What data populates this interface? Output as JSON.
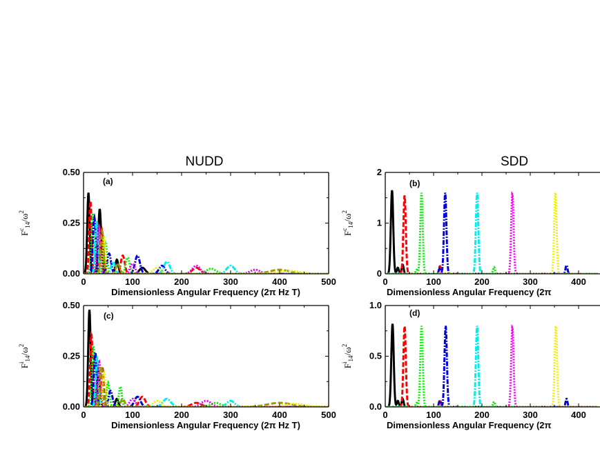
{
  "titles": {
    "left": "NUDD",
    "right": "SDD"
  },
  "colors": {
    "black": "#000000",
    "red": "#ff0000",
    "green": "#00ee00",
    "blue": "#0000dd",
    "cyan": "#00eeee",
    "magenta": "#ee00ee",
    "yellow": "#eeee00",
    "olive": "#9a9a00"
  },
  "chart_data": [
    {
      "id": "a",
      "type": "line",
      "panel_label": "(a)",
      "xlabel": "Dimensionless Angular Frequency (2π Hz T)",
      "ylabel": {
        "main": "F",
        "sup": "c",
        "sub": "14",
        "tail": "/ω",
        "tail_sup": "2"
      },
      "xlim": [
        0,
        500
      ],
      "ylim": [
        0,
        0.5
      ],
      "xticks": [
        0,
        100,
        200,
        300,
        400,
        500
      ],
      "yticks": [
        0.0,
        0.25,
        0.5
      ],
      "ytick_labels": [
        "0.00",
        "0.25",
        "0.50"
      ],
      "series": [
        {
          "color": "black",
          "dash": "solid",
          "peaks": [
            [
              10,
              0.4,
              2.5
            ],
            [
              33,
              0.32,
              3
            ],
            [
              68,
              0.07,
              3
            ],
            [
              120,
              0.03,
              6
            ]
          ]
        },
        {
          "color": "red",
          "dash": "dash",
          "peaks": [
            [
              14,
              0.36,
              2.5
            ],
            [
              37,
              0.22,
              3
            ],
            [
              80,
              0.09,
              4
            ],
            [
              230,
              0.03,
              8
            ]
          ]
        },
        {
          "color": "green",
          "dash": "dot",
          "peaks": [
            [
              19,
              0.3,
              3
            ],
            [
              45,
              0.15,
              3
            ],
            [
              90,
              0.08,
              4
            ],
            [
              260,
              0.025,
              10
            ]
          ]
        },
        {
          "color": "blue",
          "dash": "dashdot",
          "peaks": [
            [
              22,
              0.28,
              3
            ],
            [
              52,
              0.1,
              4
            ],
            [
              110,
              0.09,
              5
            ],
            [
              160,
              0.04,
              6
            ]
          ]
        },
        {
          "color": "cyan",
          "dash": "dashdot",
          "peaks": [
            [
              27,
              0.26,
              3
            ],
            [
              60,
              0.06,
              4
            ],
            [
              170,
              0.06,
              6
            ],
            [
              300,
              0.04,
              8
            ]
          ]
        },
        {
          "color": "magenta",
          "dash": "dot",
          "peaks": [
            [
              31,
              0.24,
              3
            ],
            [
              100,
              0.05,
              5
            ],
            [
              230,
              0.04,
              8
            ],
            [
              350,
              0.02,
              10
            ]
          ]
        },
        {
          "color": "olive",
          "dash": "dash",
          "peaks": [
            [
              38,
              0.21,
              3
            ],
            [
              70,
              0.05,
              4
            ],
            [
              400,
              0.02,
              20
            ]
          ]
        },
        {
          "color": "yellow",
          "dash": "dot",
          "peaks": [
            [
              42,
              0.18,
              3
            ],
            [
              150,
              0.03,
              8
            ],
            [
              420,
              0.015,
              20
            ]
          ]
        }
      ]
    },
    {
      "id": "b",
      "type": "line",
      "panel_label": "(b)",
      "xlabel": "Dimensionless Angular Frequency (2π",
      "ylabel": {
        "main": "F",
        "sup": "c",
        "sub": "14",
        "tail": "/ω",
        "tail_sup": "2"
      },
      "xlim": [
        0,
        440
      ],
      "ylim": [
        0,
        2
      ],
      "xticks": [
        0,
        100,
        200,
        300,
        400
      ],
      "yticks": [
        0,
        1,
        2
      ],
      "ytick_labels": [
        "0",
        "1",
        "2"
      ],
      "series": [
        {
          "color": "black",
          "dash": "solid",
          "peaks": [
            [
              14,
              1.65,
              2.5
            ],
            [
              26,
              0.12,
              2
            ],
            [
              36,
              0.18,
              2
            ]
          ]
        },
        {
          "color": "red",
          "dash": "dash",
          "peaks": [
            [
              40,
              1.55,
              2.5
            ],
            [
              113,
              0.15,
              2
            ]
          ]
        },
        {
          "color": "green",
          "dash": "dot",
          "peaks": [
            [
              75,
              1.6,
              2.5
            ],
            [
              65,
              0.08,
              2
            ],
            [
              225,
              0.13,
              2
            ]
          ]
        },
        {
          "color": "blue",
          "dash": "dashdot",
          "peaks": [
            [
              124,
              1.6,
              2.5
            ],
            [
              113,
              0.12,
              2
            ],
            [
              375,
              0.17,
              2
            ]
          ]
        },
        {
          "color": "cyan",
          "dash": "dashdot",
          "peaks": [
            [
              190,
              1.6,
              2.5
            ]
          ]
        },
        {
          "color": "magenta",
          "dash": "dot",
          "peaks": [
            [
              263,
              1.58,
              2.5
            ]
          ]
        },
        {
          "color": "yellow",
          "dash": "dot",
          "peaks": [
            [
              352,
              1.6,
              2.5
            ]
          ]
        }
      ]
    },
    {
      "id": "c",
      "type": "line",
      "panel_label": "(c)",
      "xlabel": "Dimensionless Angular Frequency (2π Hz T)",
      "ylabel": {
        "main": "F",
        "sup": "i",
        "sub": "14",
        "tail": "/ω",
        "tail_sup": "2"
      },
      "xlim": [
        0,
        500
      ],
      "ylim": [
        0,
        0.5
      ],
      "xticks": [
        0,
        100,
        200,
        300,
        400,
        500
      ],
      "yticks": [
        0.0,
        0.25,
        0.5
      ],
      "ytick_labels": [
        "0.00",
        "0.25",
        "0.50"
      ],
      "series": [
        {
          "color": "black",
          "dash": "solid",
          "peaks": [
            [
              12,
              0.48,
              2.5
            ],
            [
              30,
              0.18,
              3
            ],
            [
              68,
              0.04,
              3
            ]
          ]
        },
        {
          "color": "red",
          "dash": "dash",
          "peaks": [
            [
              16,
              0.36,
              2.5
            ],
            [
              38,
              0.2,
              3
            ],
            [
              120,
              0.05,
              6
            ],
            [
              230,
              0.02,
              10
            ]
          ]
        },
        {
          "color": "green",
          "dash": "dot",
          "peaks": [
            [
              20,
              0.3,
              3
            ],
            [
              50,
              0.12,
              3
            ],
            [
              75,
              0.1,
              3
            ],
            [
              270,
              0.02,
              10
            ]
          ]
        },
        {
          "color": "blue",
          "dash": "dashdot",
          "peaks": [
            [
              24,
              0.27,
              3
            ],
            [
              55,
              0.08,
              4
            ],
            [
              110,
              0.05,
              6
            ]
          ]
        },
        {
          "color": "cyan",
          "dash": "dashdot",
          "peaks": [
            [
              28,
              0.24,
              3
            ],
            [
              170,
              0.04,
              8
            ],
            [
              300,
              0.03,
              8
            ]
          ]
        },
        {
          "color": "magenta",
          "dash": "dot",
          "peaks": [
            [
              32,
              0.22,
              3
            ],
            [
              100,
              0.04,
              6
            ],
            [
              250,
              0.03,
              10
            ]
          ]
        },
        {
          "color": "olive",
          "dash": "dash",
          "peaks": [
            [
              36,
              0.2,
              3
            ],
            [
              80,
              0.04,
              4
            ],
            [
              400,
              0.02,
              25
            ]
          ]
        },
        {
          "color": "yellow",
          "dash": "dot",
          "peaks": [
            [
              42,
              0.17,
              3
            ],
            [
              150,
              0.03,
              8
            ],
            [
              430,
              0.015,
              20
            ]
          ]
        }
      ]
    },
    {
      "id": "d",
      "type": "line",
      "panel_label": "(d)",
      "xlabel": "Dimensionless Angular Frequency (2π",
      "ylabel": {
        "main": "F",
        "sup": "i",
        "sub": "14",
        "tail": "/ω",
        "tail_sup": "2"
      },
      "xlim": [
        0,
        440
      ],
      "ylim": [
        0,
        1.0
      ],
      "xticks": [
        0,
        100,
        200,
        300,
        400
      ],
      "yticks": [
        0.0,
        0.5,
        1.0
      ],
      "ytick_labels": [
        "0.0",
        "0.5",
        "1.0"
      ],
      "series": [
        {
          "color": "black",
          "dash": "solid",
          "peaks": [
            [
              15,
              0.82,
              2.5
            ],
            [
              26,
              0.06,
              2
            ],
            [
              36,
              0.08,
              2
            ]
          ]
        },
        {
          "color": "red",
          "dash": "dash",
          "peaks": [
            [
              40,
              0.8,
              2.5
            ],
            [
              113,
              0.07,
              2
            ]
          ]
        },
        {
          "color": "green",
          "dash": "dot",
          "peaks": [
            [
              75,
              0.8,
              2.5
            ],
            [
              65,
              0.04,
              2
            ],
            [
              225,
              0.05,
              2
            ]
          ]
        },
        {
          "color": "blue",
          "dash": "dashdot",
          "peaks": [
            [
              125,
              0.8,
              2.5
            ],
            [
              113,
              0.06,
              2
            ],
            [
              375,
              0.08,
              2
            ]
          ]
        },
        {
          "color": "cyan",
          "dash": "dashdot",
          "peaks": [
            [
              190,
              0.8,
              2.5
            ]
          ]
        },
        {
          "color": "magenta",
          "dash": "dot",
          "peaks": [
            [
              263,
              0.79,
              2.5
            ]
          ]
        },
        {
          "color": "yellow",
          "dash": "dot",
          "peaks": [
            [
              353,
              0.8,
              2.5
            ]
          ]
        }
      ]
    }
  ]
}
